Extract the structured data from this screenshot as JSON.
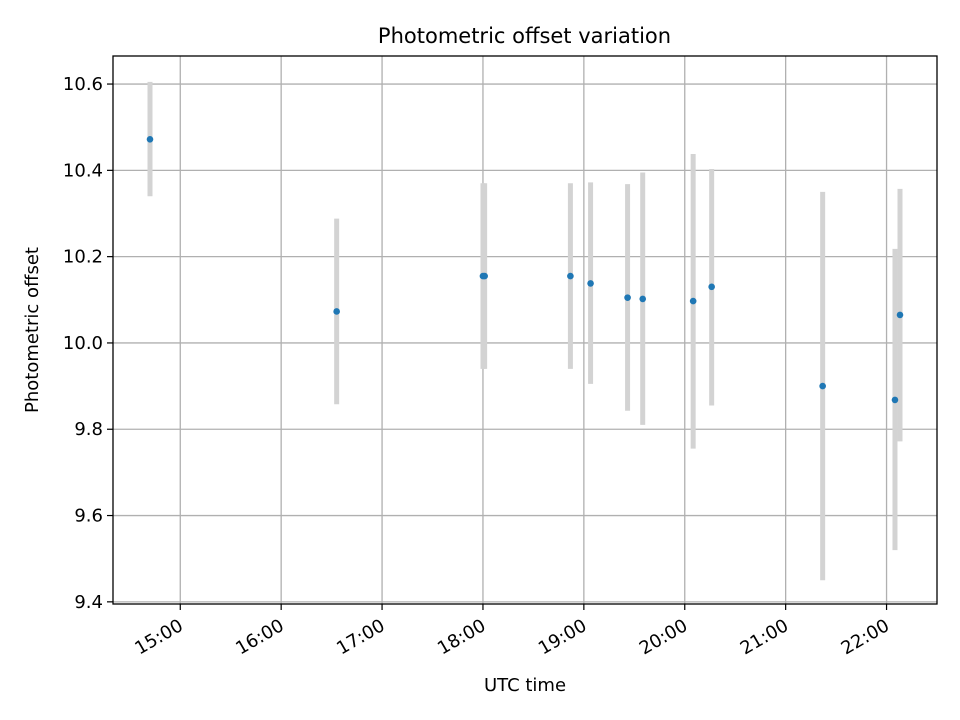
{
  "chart_data": {
    "type": "scatter",
    "title": "Photometric offset variation",
    "xlabel": "UTC time",
    "ylabel": "Photometric offset",
    "grid": true,
    "xlim": [
      "14:20",
      "22:30"
    ],
    "ylim": [
      9.395,
      10.665
    ],
    "x_ticks": [
      "15:00",
      "16:00",
      "17:00",
      "18:00",
      "19:00",
      "20:00",
      "21:00",
      "22:00"
    ],
    "y_ticks": [
      9.4,
      9.6,
      9.8,
      10.0,
      10.2,
      10.4,
      10.6
    ],
    "y_tick_labels": [
      "9.4",
      "9.6",
      "9.8",
      "10.0",
      "10.2",
      "10.4",
      "10.6"
    ],
    "points": [
      {
        "x": "14:42",
        "y": 10.472,
        "err_low": 10.34,
        "err_high": 10.605
      },
      {
        "x": "16:33",
        "y": 10.073,
        "err_low": 9.858,
        "err_high": 10.288
      },
      {
        "x": "18:00",
        "y": 10.155,
        "err_low": 9.94,
        "err_high": 10.37
      },
      {
        "x": "18:01",
        "y": 10.155,
        "err_low": 9.94,
        "err_high": 10.37
      },
      {
        "x": "18:52",
        "y": 10.155,
        "err_low": 9.94,
        "err_high": 10.37
      },
      {
        "x": "19:04",
        "y": 10.138,
        "err_low": 9.905,
        "err_high": 10.372
      },
      {
        "x": "19:26",
        "y": 10.105,
        "err_low": 9.843,
        "err_high": 10.368
      },
      {
        "x": "19:35",
        "y": 10.102,
        "err_low": 9.81,
        "err_high": 10.395
      },
      {
        "x": "20:05",
        "y": 10.097,
        "err_low": 9.755,
        "err_high": 10.438
      },
      {
        "x": "20:16",
        "y": 10.13,
        "err_low": 9.855,
        "err_high": 10.403
      },
      {
        "x": "21:22",
        "y": 9.9,
        "err_low": 9.45,
        "err_high": 10.35
      },
      {
        "x": "22:05",
        "y": 9.868,
        "err_low": 9.52,
        "err_high": 10.218
      },
      {
        "x": "22:08",
        "y": 10.065,
        "err_low": 9.772,
        "err_high": 10.357
      }
    ],
    "colors": {
      "point": "#1f77b4",
      "error_bar": "#d3d3d3",
      "grid": "#b0b0b0"
    }
  }
}
